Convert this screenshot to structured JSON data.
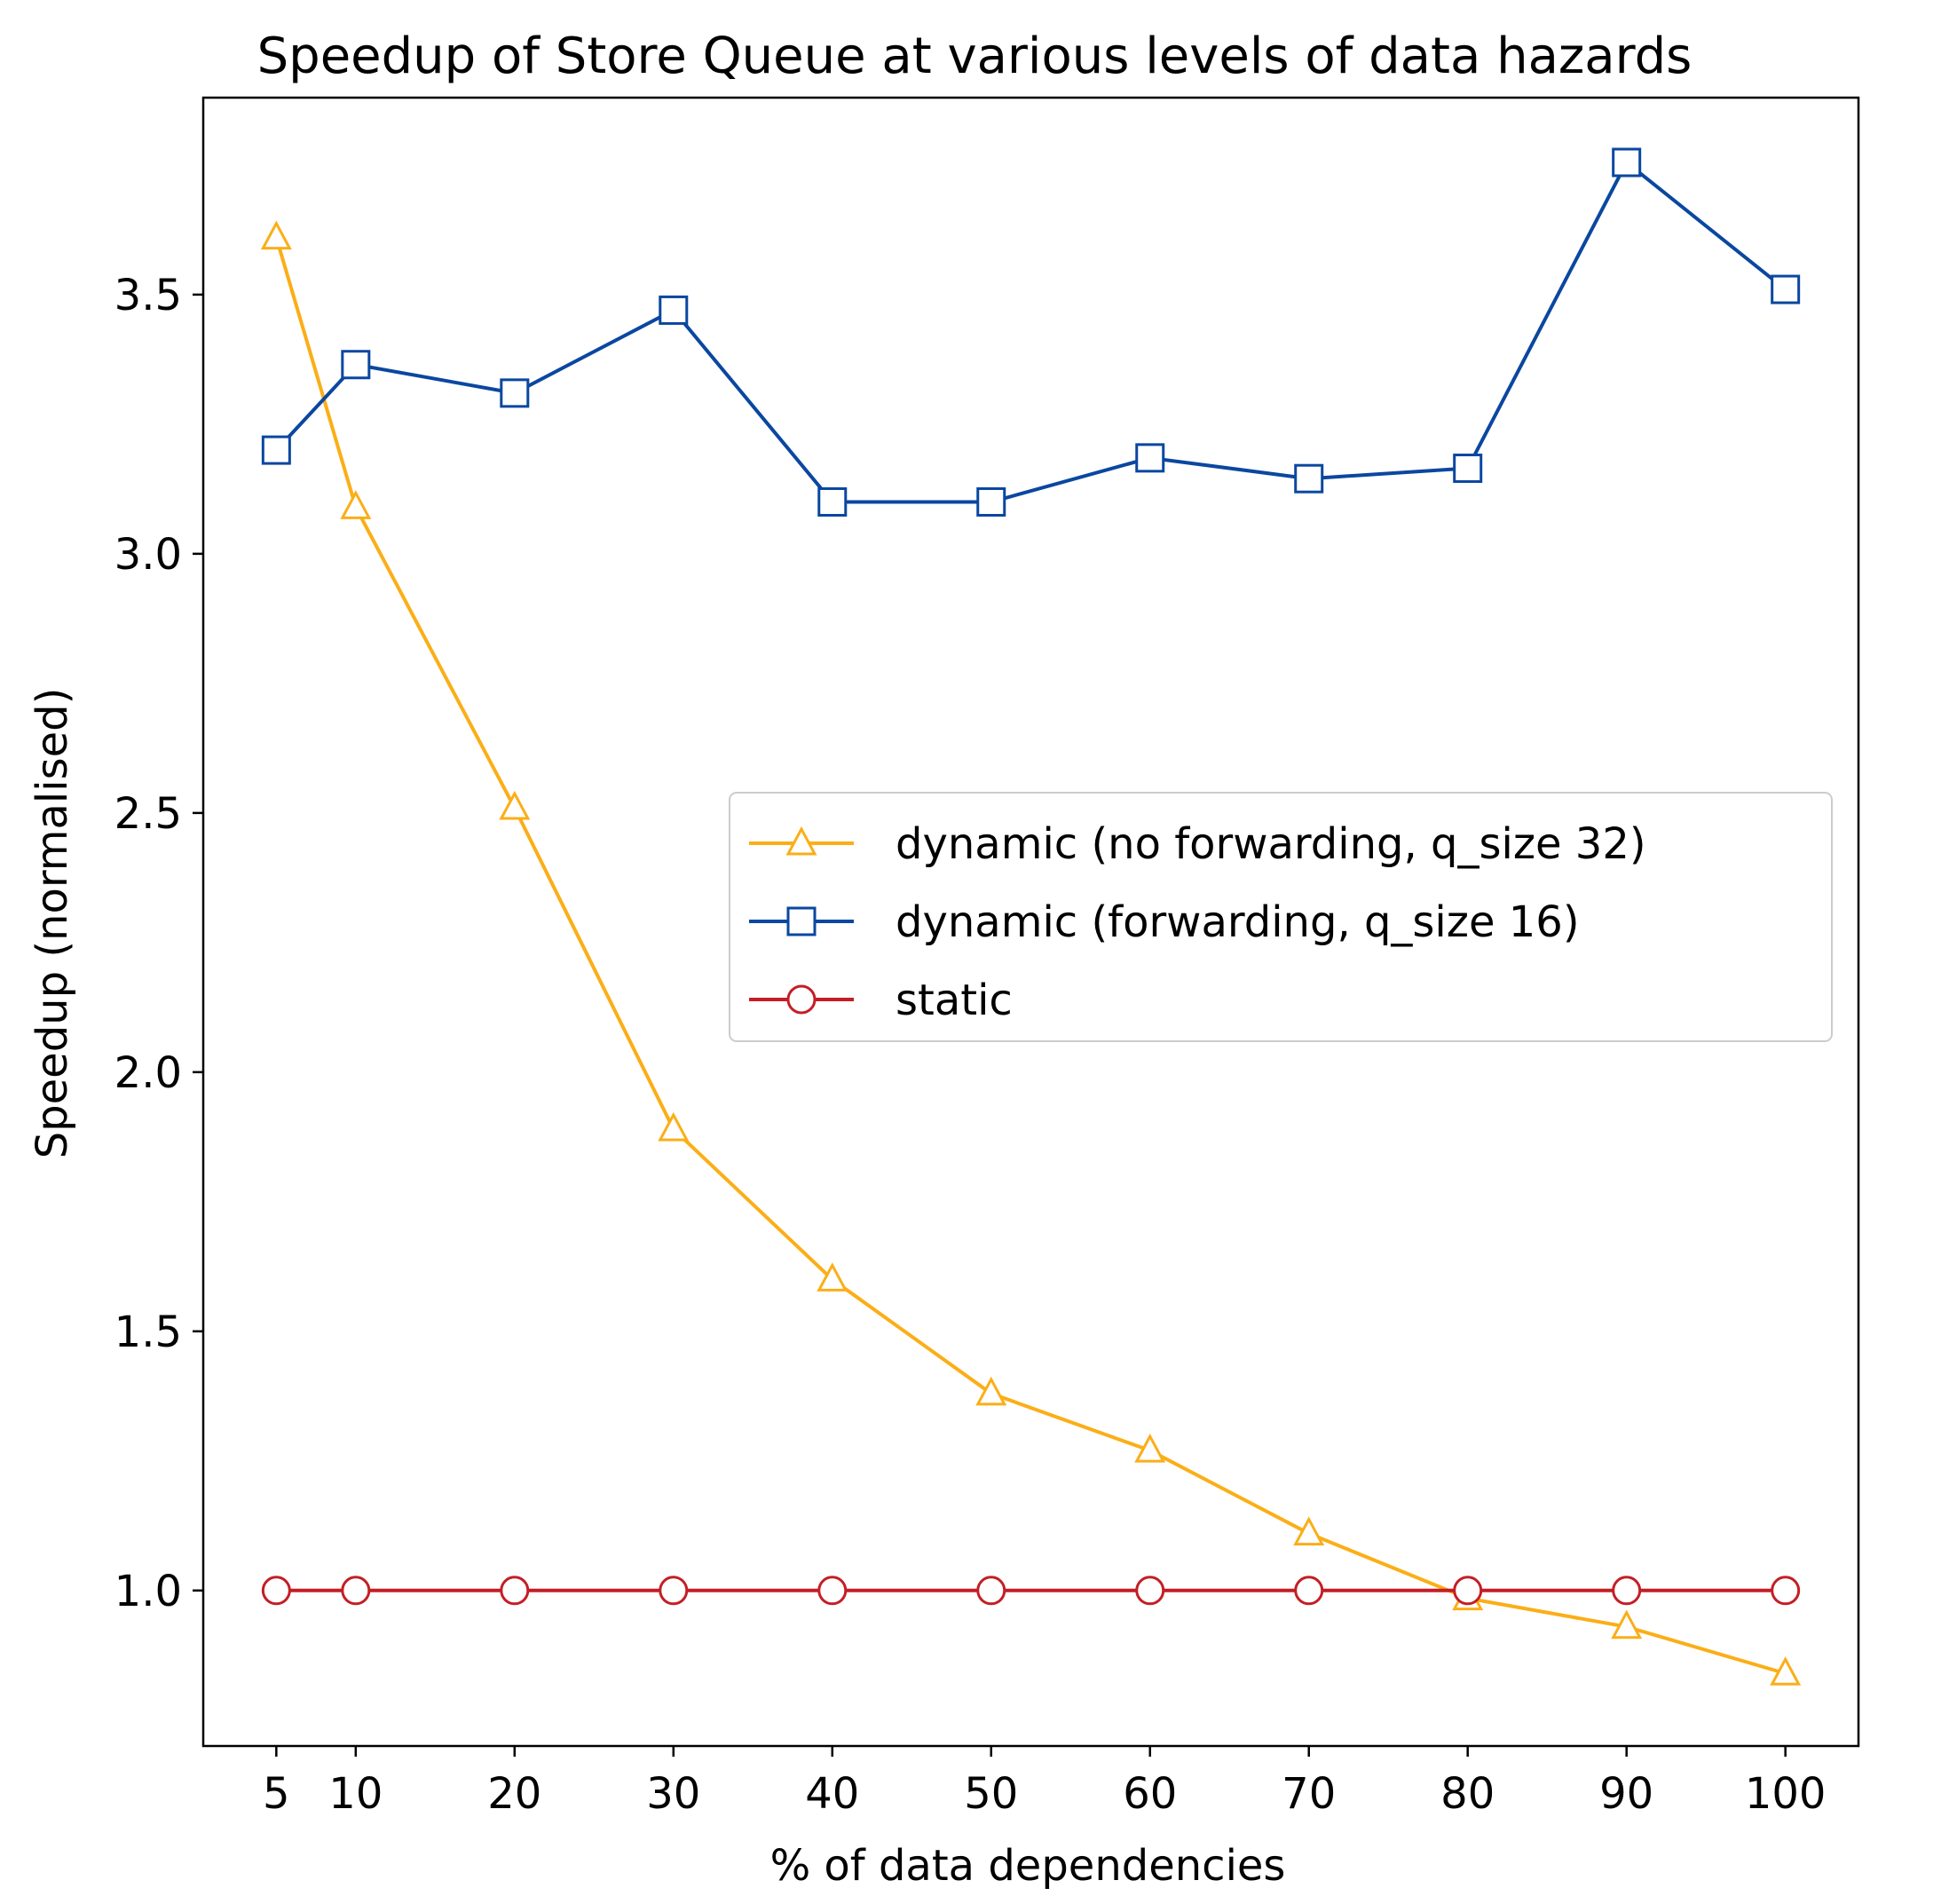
{
  "chart_data": {
    "type": "line",
    "title": "Speedup of Store Queue at various levels of data hazards",
    "xlabel": "% of data dependencies",
    "ylabel": "Speedup (normalised)",
    "x": [
      5,
      10,
      20,
      30,
      40,
      50,
      60,
      70,
      80,
      90,
      100
    ],
    "x_ticks": [
      5,
      10,
      20,
      30,
      40,
      50,
      60,
      70,
      80,
      90,
      100
    ],
    "x_tick_labels": [
      "5",
      "10",
      "20",
      "30",
      "40",
      "50",
      "60",
      "70",
      "80",
      "90",
      "100"
    ],
    "y_ticks": [
      1.0,
      1.5,
      2.0,
      2.5,
      3.0,
      3.5
    ],
    "y_tick_labels": [
      "1.0",
      "1.5",
      "2.0",
      "2.5",
      "3.0",
      "3.5"
    ],
    "xlim": [
      0.4,
      104.6
    ],
    "ylim": [
      0.7,
      3.88
    ],
    "grid": false,
    "legend_position": "center-right",
    "series": [
      {
        "name": "dynamic (no forwarding, q_size 32)",
        "marker": "triangle",
        "color": "#FBAE17",
        "values": [
          3.61,
          3.09,
          2.51,
          1.89,
          1.6,
          1.38,
          1.27,
          1.11,
          0.985,
          0.93,
          0.84
        ]
      },
      {
        "name": "dynamic (forwarding, q_size 16)",
        "marker": "square",
        "color": "#0A47A0",
        "values": [
          3.2,
          3.365,
          3.31,
          3.47,
          3.1,
          3.1,
          3.185,
          3.145,
          3.165,
          3.755,
          3.51
        ]
      },
      {
        "name": "static",
        "marker": "circle",
        "color": "#C41E25",
        "values": [
          1.0,
          1.0,
          1.0,
          1.0,
          1.0,
          1.0,
          1.0,
          1.0,
          1.0,
          1.0,
          1.0
        ]
      }
    ]
  }
}
